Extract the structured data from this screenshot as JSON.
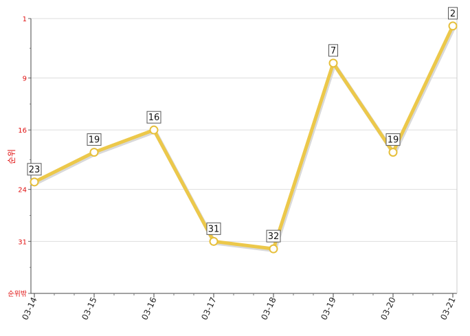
{
  "chart_data": {
    "type": "line",
    "title": "",
    "xlabel": "",
    "ylabel": "순위",
    "y_reversed": true,
    "y_ticks": [
      {
        "label": "1",
        "value": 1
      },
      {
        "label": "9",
        "value": 9
      },
      {
        "label": "16",
        "value": 16
      },
      {
        "label": "24",
        "value": 24
      },
      {
        "label": "31",
        "value": 31
      },
      {
        "label": "순위밖",
        "value": 38
      }
    ],
    "ylim": [
      1,
      38
    ],
    "categories": [
      "03-14",
      "03-15",
      "03-16",
      "03-17",
      "03-18",
      "03-19",
      "03-20",
      "03-21"
    ],
    "series": [
      {
        "values": [
          23,
          19,
          16,
          31,
          32,
          7,
          19,
          2
        ],
        "labels": [
          "23",
          "19",
          "16",
          "31",
          "32",
          "7",
          "19",
          "2"
        ],
        "color": "#ecc84a"
      }
    ],
    "grid": true,
    "legend": "none",
    "colors": {
      "line": "#ecc84a",
      "marker_stroke": "#e6bf3a",
      "axis_text": "#e01010",
      "grid": "#dddddd"
    }
  }
}
